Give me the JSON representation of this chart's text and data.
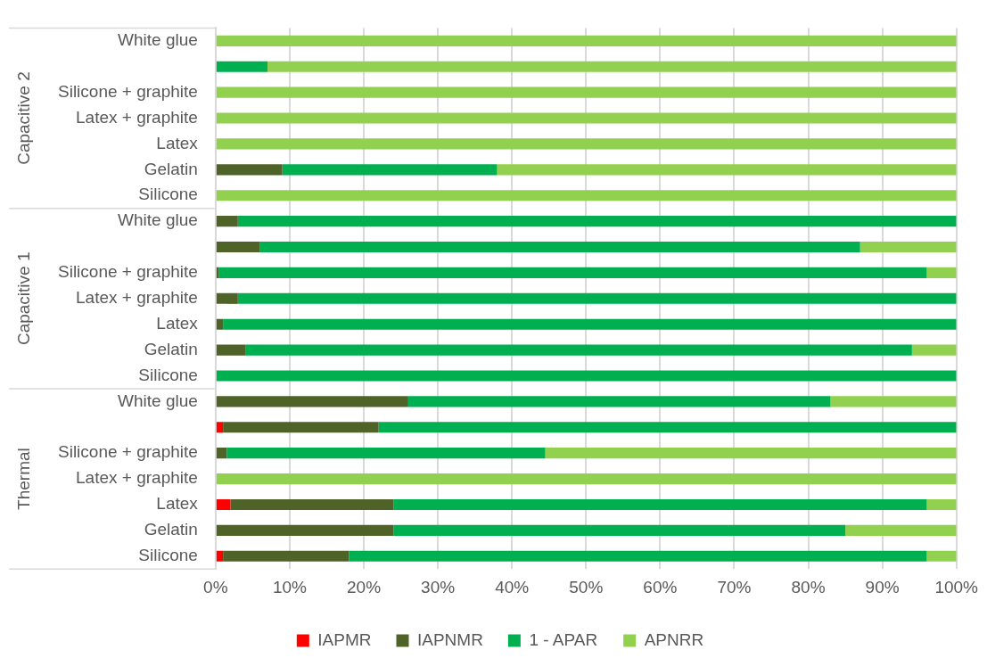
{
  "chart_data": {
    "type": "bar",
    "orientation": "horizontal",
    "stacked": true,
    "categories": [
      "White glue",
      null,
      "Silicone + graphite",
      "Latex + graphite",
      "Latex",
      "Gelatin",
      "Silicone",
      "White glue",
      null,
      "Silicone + graphite",
      "Latex + graphite",
      "Latex",
      "Gelatin",
      "Silicone",
      "White glue",
      null,
      "Silicone + graphite",
      "Latex + graphite",
      "Latex",
      "Gelatin",
      "Silicone"
    ],
    "series": [
      {
        "name": "IAPMR",
        "color": "#ff0000",
        "values": [
          0,
          0,
          0,
          0,
          0,
          0,
          0,
          0,
          0,
          0,
          0,
          0,
          0,
          0,
          0,
          1,
          0,
          0,
          2,
          0,
          1
        ]
      },
      {
        "name": "IAPNMR",
        "color": "#4f6228",
        "values": [
          0,
          0,
          0,
          0,
          0,
          9,
          0,
          3,
          6,
          0.4,
          3,
          1,
          4,
          0,
          26,
          21,
          1.5,
          0,
          22,
          24,
          17
        ]
      },
      {
        "name": "1 - APAR",
        "color": "#00b050",
        "values": [
          0,
          7,
          0,
          0,
          0,
          29,
          0,
          97,
          81,
          95.6,
          97,
          99,
          90,
          100,
          57,
          78,
          43,
          0,
          72,
          61,
          78
        ]
      },
      {
        "name": "APNRR",
        "color": "#92d050",
        "values": [
          100,
          93,
          100,
          100,
          100,
          62,
          100,
          0,
          13,
          4,
          0,
          0,
          6,
          0,
          17,
          0,
          55.5,
          100,
          4,
          15,
          4
        ]
      }
    ],
    "xlim": [
      0,
      100
    ],
    "xticks": [
      {
        "value": 0,
        "label": "0%"
      },
      {
        "value": 10,
        "label": "10%"
      },
      {
        "value": 20,
        "label": "20%"
      },
      {
        "value": 30,
        "label": "30%"
      },
      {
        "value": 40,
        "label": "40%"
      },
      {
        "value": 50,
        "label": "50%"
      },
      {
        "value": 60,
        "label": "60%"
      },
      {
        "value": 70,
        "label": "70%"
      },
      {
        "value": 80,
        "label": "80%"
      },
      {
        "value": 90,
        "label": "90%"
      },
      {
        "value": 100,
        "label": "100%"
      }
    ],
    "annotations": [
      "Capacitive 2",
      "Capacitive 1",
      "Thermal"
    ],
    "grid": "x",
    "legend": "bottom"
  }
}
